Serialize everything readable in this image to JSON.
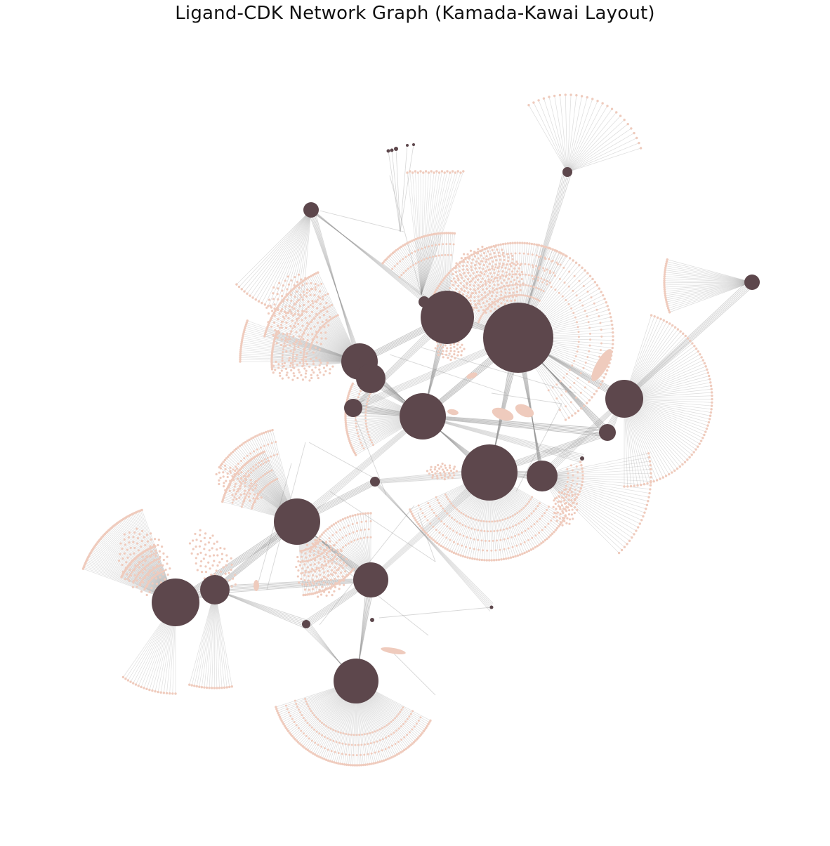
{
  "title": "Ligand-CDK Network Graph (Kamada-Kawai Layout)",
  "colors": {
    "cdk_node": "#5d474c",
    "ligand_node": "#efcbbd",
    "edge": "#8c8c8c",
    "background": "#ffffff"
  },
  "legend": null
}
